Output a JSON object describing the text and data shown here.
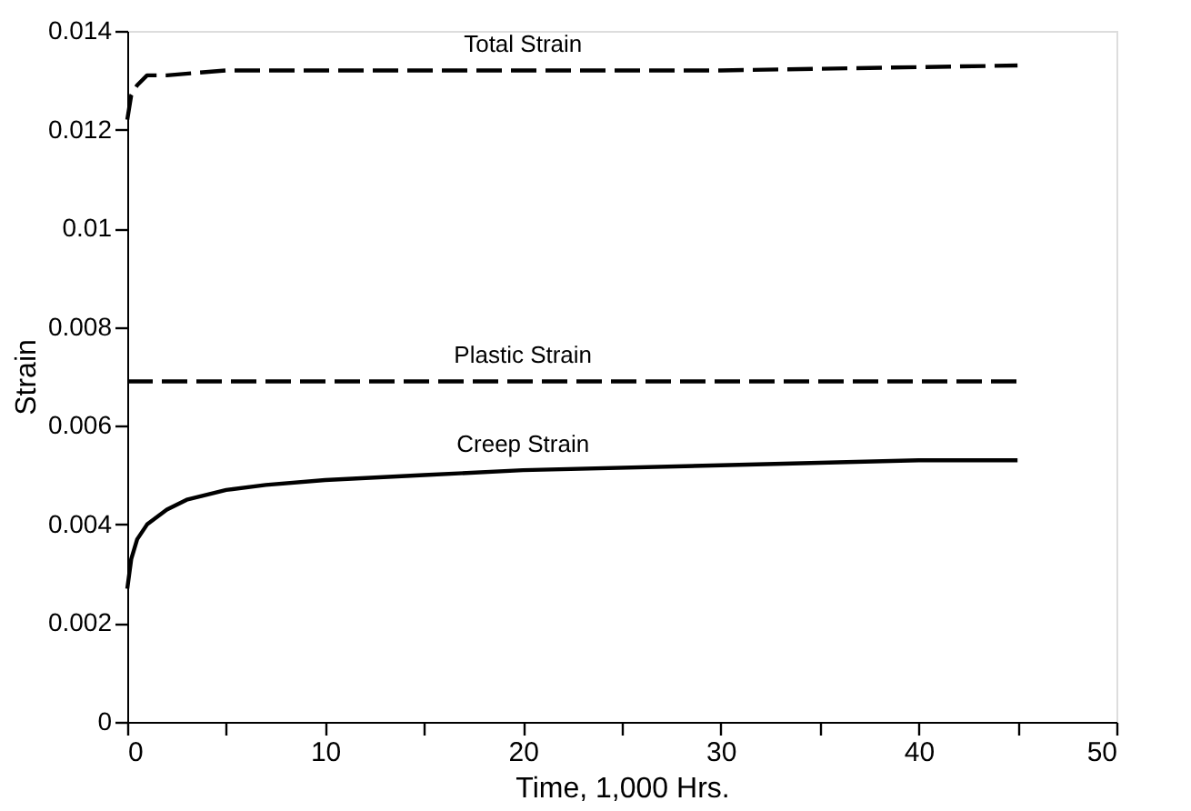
{
  "chart_data": {
    "type": "line",
    "xlabel": "Time, 1,000 Hrs.",
    "ylabel": "Strain",
    "xlim": [
      0,
      50
    ],
    "ylim": [
      0,
      0.014
    ],
    "xticks": [
      0,
      {
        "value": 5,
        "label": null
      },
      10,
      {
        "value": 15,
        "label": null
      },
      20,
      {
        "value": 25,
        "label": null
      },
      30,
      {
        "value": 35,
        "label": null
      },
      40,
      {
        "value": 45,
        "label": null
      },
      50
    ],
    "yticks": [
      0,
      0.002,
      0.004,
      0.006,
      0.008,
      0.01,
      0.012,
      0.014
    ],
    "grid": false,
    "legend": false,
    "marker": "none",
    "series": [
      {
        "name": "Total Strain",
        "color": "#000000",
        "line_style": "dashed",
        "x": [
          0,
          0.2,
          0.5,
          1,
          2,
          5,
          10,
          20,
          30,
          45
        ],
        "values": [
          0.0122,
          0.0127,
          0.0129,
          0.0131,
          0.0131,
          0.0132,
          0.0132,
          0.0132,
          0.0132,
          0.0133
        ]
      },
      {
        "name": "Plastic Strain",
        "color": "#000000",
        "line_style": "dashed",
        "x": [
          0,
          10,
          20,
          30,
          45
        ],
        "values": [
          0.0069,
          0.0069,
          0.0069,
          0.0069,
          0.0069
        ]
      },
      {
        "name": "Creep Strain",
        "color": "#000000",
        "line_style": "solid",
        "x": [
          0,
          0.2,
          0.5,
          1,
          2,
          3,
          5,
          7,
          10,
          15,
          20,
          30,
          40,
          45
        ],
        "values": [
          0.0027,
          0.0033,
          0.0037,
          0.004,
          0.0043,
          0.0045,
          0.0047,
          0.0048,
          0.0049,
          0.005,
          0.0051,
          0.0052,
          0.0053,
          0.0053
        ]
      }
    ]
  }
}
